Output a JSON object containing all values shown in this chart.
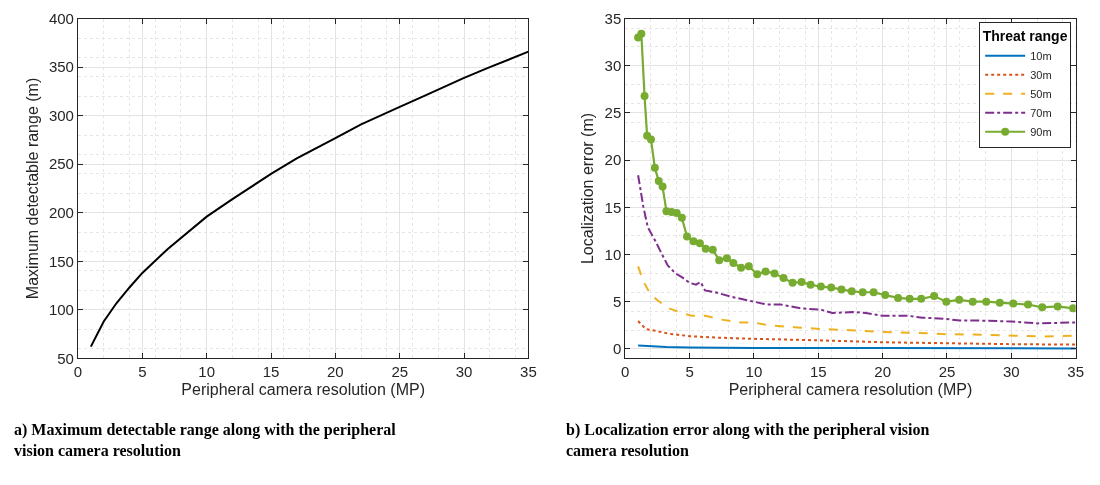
{
  "chart_data": [
    {
      "type": "line",
      "xlabel": "Peripheral camera resolution (MP)",
      "ylabel": "Maximum detectable range (m)",
      "xlim": [
        0,
        35
      ],
      "xticks": [
        0,
        5,
        10,
        15,
        20,
        25,
        30,
        35
      ],
      "ylim": [
        50,
        400
      ],
      "yticks": [
        50,
        100,
        150,
        200,
        250,
        300,
        350,
        400
      ],
      "grid": true,
      "legend": false,
      "marker": "none",
      "annotations": [
        "a) Maximum detectable range along with the peripheral vision camera resolution"
      ],
      "series": [
        {
          "color": "#000000",
          "line_style": "solid",
          "x": [
            1,
            2,
            3,
            4,
            5,
            7,
            10,
            12,
            15,
            17,
            20,
            22,
            25,
            27,
            30,
            32,
            35
          ],
          "values": [
            62,
            88,
            107,
            123,
            138,
            163,
            196,
            214,
            240,
            256,
            277,
            291,
            309,
            321,
            339,
            350,
            366
          ]
        }
      ]
    },
    {
      "type": "line",
      "xlabel": "Peripheral camera resolution (MP)",
      "ylabel": "Localization error (m)",
      "legend_title": "Threat range",
      "xlim": [
        0,
        35
      ],
      "xticks": [
        0,
        5,
        10,
        15,
        20,
        25,
        30,
        35
      ],
      "ylim": [
        -1,
        35
      ],
      "yticks": [
        0,
        5,
        10,
        15,
        20,
        25,
        30,
        35
      ],
      "grid": true,
      "legend": "top right",
      "annotations": [
        "b) Localization error along with the peripheral vision camera resolution"
      ],
      "series": [
        {
          "name": "10m",
          "color": "#0072bd",
          "line_style": "solid",
          "marker": "none",
          "x": [
            1,
            3.2,
            5,
            10,
            20,
            35
          ],
          "values": [
            0.35,
            0.2,
            0.15,
            0.1,
            0.08,
            0.05
          ]
        },
        {
          "name": "30m",
          "color": "#d95319",
          "line_style": "dotted",
          "marker": "none",
          "x": [
            1,
            1.6,
            2.4,
            3.4,
            5,
            7,
            9.5,
            12.1,
            15.2,
            17.7,
            20,
            25,
            30,
            35
          ],
          "values": [
            2.95,
            2.1,
            1.9,
            1.6,
            1.35,
            1.2,
            1.08,
            1.0,
            0.9,
            0.8,
            0.7,
            0.6,
            0.5,
            0.45
          ]
        },
        {
          "name": "50m",
          "color": "#edb120",
          "line_style": "dashed",
          "marker": "none",
          "x": [
            1,
            1.4,
            1.9,
            2.5,
            3.4,
            4.4,
            5.2,
            6.2,
            7.5,
            9,
            10,
            11.1,
            13.1,
            15.2,
            17.2,
            20,
            22.6,
            25.1,
            27.7,
            30.2,
            32.5,
            35
          ],
          "values": [
            8.75,
            7.2,
            5.9,
            5.15,
            4.3,
            3.8,
            3.5,
            3.5,
            3.1,
            2.8,
            2.8,
            2.5,
            2.3,
            2.1,
            2.0,
            1.8,
            1.7,
            1.55,
            1.5,
            1.4,
            1.3,
            1.4
          ]
        },
        {
          "name": "70m",
          "color": "#7e2f8e",
          "line_style": "dashdot",
          "marker": "none",
          "x": [
            1,
            1.4,
            1.75,
            2.35,
            2.9,
            3.3,
            3.9,
            4.4,
            5,
            5.5,
            5.85,
            6.2,
            7,
            8.3,
            10,
            11,
            12.1,
            13.6,
            15.2,
            16.1,
            17.7,
            18.7,
            20,
            22,
            23.1,
            24.8,
            26,
            27.4,
            30,
            32,
            35
          ],
          "values": [
            18.4,
            15.1,
            12.9,
            11.4,
            9.9,
            8.85,
            8.0,
            7.6,
            7.0,
            6.8,
            7.1,
            6.2,
            6.0,
            5.5,
            5.0,
            4.7,
            4.7,
            4.3,
            4.15,
            3.8,
            3.9,
            3.8,
            3.5,
            3.5,
            3.3,
            3.2,
            3.0,
            3.0,
            2.9,
            2.7,
            2.8
          ]
        },
        {
          "name": "90m",
          "color": "#77ac30",
          "line_style": "solid",
          "marker": "circle",
          "x": [
            1,
            1.25,
            1.5,
            1.7,
            2,
            2.3,
            2.6,
            2.9,
            3.2,
            3.6,
            4,
            4.4,
            4.8,
            5.3,
            5.8,
            6.25,
            6.8,
            7.3,
            7.9,
            8.4,
            9,
            9.6,
            10.25,
            10.9,
            11.6,
            12.3,
            13,
            13.7,
            14.4,
            15.2,
            16,
            16.8,
            17.6,
            18.45,
            19.3,
            20.2,
            21.2,
            22.1,
            23,
            24,
            24.95,
            25.95,
            27,
            28.05,
            29.1,
            30.15,
            31.3,
            32.4,
            33.6,
            34.8
          ],
          "values": [
            33.0,
            33.4,
            26.8,
            22.6,
            22.2,
            19.2,
            17.8,
            17.2,
            14.6,
            14.5,
            14.4,
            13.9,
            11.9,
            11.4,
            11.2,
            10.6,
            10.5,
            9.4,
            9.6,
            9.1,
            8.6,
            8.75,
            7.9,
            8.2,
            8.0,
            7.5,
            7.0,
            7.1,
            6.8,
            6.6,
            6.5,
            6.3,
            6.1,
            6.0,
            6.0,
            5.7,
            5.4,
            5.3,
            5.3,
            5.6,
            5.0,
            5.2,
            5.0,
            5.0,
            4.9,
            4.8,
            4.7,
            4.4,
            4.5,
            4.3
          ]
        }
      ]
    }
  ]
}
